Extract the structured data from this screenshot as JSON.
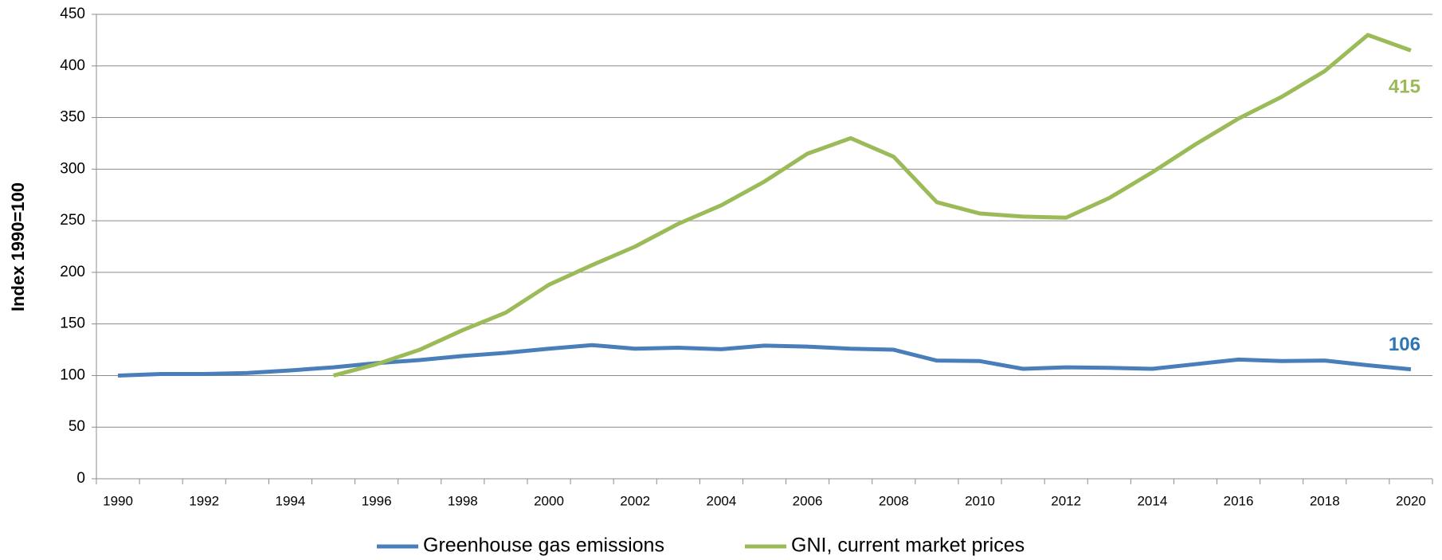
{
  "chart_data": {
    "type": "line",
    "ylabel": "Index 1990=100",
    "categories": [
      "1990",
      null,
      "1992",
      null,
      "1994",
      null,
      "1996",
      null,
      "1998",
      null,
      "2000",
      null,
      "2002",
      null,
      "2004",
      null,
      "2006",
      null,
      "2008",
      null,
      "2010",
      null,
      "2012",
      null,
      "2014",
      null,
      "2016",
      null,
      "2018",
      null,
      "2020"
    ],
    "series": [
      {
        "name": "Greenhouse gas emissions",
        "color": "#4a7ebb",
        "values": [
          100,
          101.5,
          101.5,
          102.5,
          105,
          108,
          112,
          115,
          119,
          122,
          126,
          129.5,
          126,
          127,
          125.5,
          129,
          128,
          126,
          125,
          114.5,
          114,
          106.5,
          108,
          107.5,
          106.5,
          111,
          115.5,
          114,
          114.5,
          110,
          106
        ]
      },
      {
        "name": "GNI, current market prices",
        "color": "#9bbb59",
        "values": [
          null,
          null,
          null,
          null,
          null,
          100,
          111,
          125,
          144,
          161,
          188,
          207,
          225,
          247,
          265,
          288,
          315,
          330,
          312,
          268,
          257,
          254,
          253,
          272,
          297,
          324,
          349,
          370,
          395,
          430,
          415
        ]
      }
    ],
    "ylim": [
      0,
      450
    ],
    "yticks": [
      0,
      50,
      100,
      150,
      200,
      250,
      300,
      350,
      400,
      450
    ],
    "grid": true,
    "legend": "bottom"
  }
}
